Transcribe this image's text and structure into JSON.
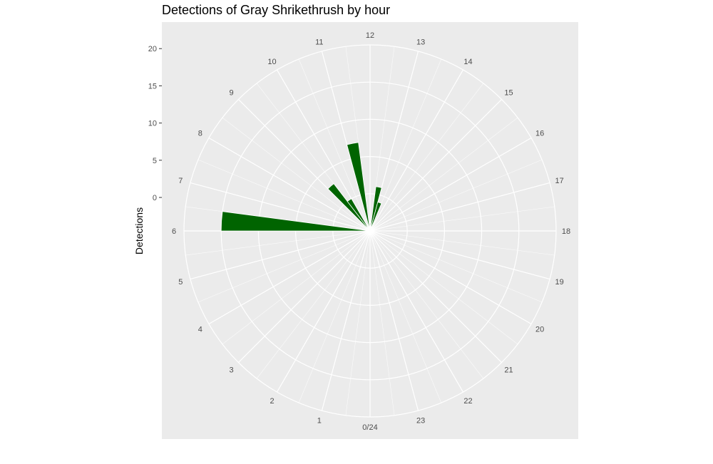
{
  "chart_data": {
    "type": "bar",
    "coord": "polar",
    "title": "Detections of Gray Shrikethrush by hour",
    "xlabel": "",
    "ylabel": "Detections",
    "ylim": [
      0,
      25
    ],
    "y_ticks": [
      0,
      5,
      10,
      15,
      20
    ],
    "hour_labels": [
      "0/24",
      "1",
      "2",
      "3",
      "4",
      "5",
      "6",
      "7",
      "8",
      "9",
      "10",
      "11",
      "12",
      "13",
      "14",
      "15",
      "16",
      "17",
      "18",
      "19",
      "20",
      "21",
      "22",
      "23"
    ],
    "hours": [
      6,
      6.5,
      7,
      7.5,
      8,
      8.5,
      9,
      9.5,
      10,
      10.5,
      11,
      11.5,
      12,
      12.5,
      13,
      13.5
    ],
    "values": [
      20,
      0,
      0,
      0,
      0,
      0,
      8,
      5,
      0,
      0,
      12,
      0,
      0,
      6,
      4,
      0
    ],
    "grid": true,
    "bar_color": "#006400",
    "panel_color": "#ebebeb",
    "grid_color": "#ffffff"
  }
}
